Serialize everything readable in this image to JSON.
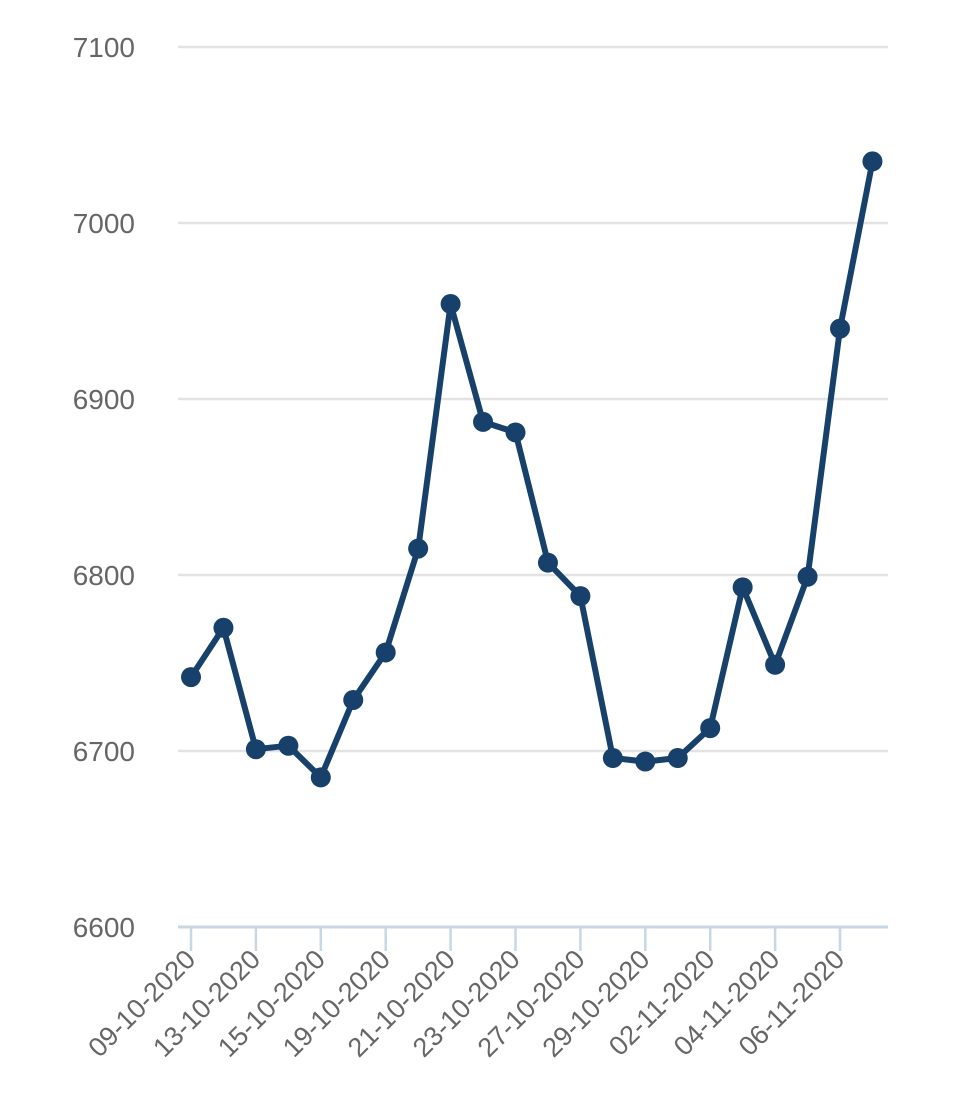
{
  "chart_data": {
    "type": "line",
    "title": "",
    "xlabel": "",
    "ylabel": "",
    "ylim": [
      6600,
      7100
    ],
    "yticks": [
      6600,
      6700,
      6800,
      6900,
      7000,
      7100
    ],
    "grid": true,
    "line_color": "#17416a",
    "x": [
      "09-10-2020",
      "12-10-2020",
      "13-10-2020",
      "14-10-2020",
      "15-10-2020",
      "16-10-2020",
      "19-10-2020",
      "20-10-2020",
      "21-10-2020",
      "22-10-2020",
      "23-10-2020",
      "26-10-2020",
      "27-10-2020",
      "28-10-2020",
      "29-10-2020",
      "30-10-2020",
      "02-11-2020",
      "03-11-2020",
      "04-11-2020",
      "05-11-2020",
      "06-11-2020",
      "09-11-2020"
    ],
    "x_tick_labels": [
      "09-10-2020",
      "13-10-2020",
      "15-10-2020",
      "19-10-2020",
      "21-10-2020",
      "23-10-2020",
      "27-10-2020",
      "29-10-2020",
      "02-11-2020",
      "04-11-2020",
      "06-11-2020"
    ],
    "values": [
      6742,
      6770,
      6701,
      6703,
      6685,
      6729,
      6756,
      6815,
      6954,
      6887,
      6881,
      6807,
      6788,
      6696,
      6694,
      6696,
      6713,
      6793,
      6749,
      6799,
      6940,
      7035
    ]
  }
}
